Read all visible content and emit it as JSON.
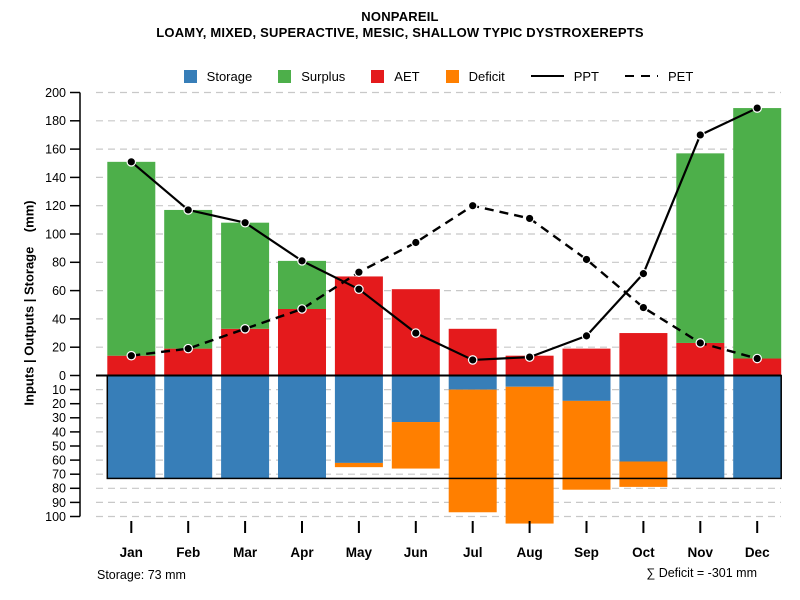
{
  "header": {
    "title": "NONPAREIL",
    "subtitle": "LOAMY, MIXED, SUPERACTIVE, MESIC, SHALLOW TYPIC DYSTROXEREPTS"
  },
  "legend": {
    "items": [
      {
        "label": "Storage",
        "type": "swatch",
        "color": "#377EB8"
      },
      {
        "label": "Surplus",
        "type": "swatch",
        "color": "#4DAF4A"
      },
      {
        "label": "AET",
        "type": "swatch",
        "color": "#E41A1C"
      },
      {
        "label": "Deficit",
        "type": "swatch",
        "color": "#FF7F00"
      },
      {
        "label": "PPT",
        "type": "solid-line",
        "color": "#000000"
      },
      {
        "label": "PET",
        "type": "dashed-line",
        "color": "#000000"
      }
    ]
  },
  "y_axis": {
    "label": "Inputs | Outputs | Storage    (mm)",
    "top_ticks": [
      0,
      20,
      40,
      60,
      80,
      100,
      120,
      140,
      160,
      180,
      200
    ],
    "bottom_ticks": [
      0,
      10,
      20,
      30,
      40,
      50,
      60,
      70,
      80,
      90,
      100
    ]
  },
  "footer": {
    "storage_note": "Storage: 73 mm",
    "deficit_note": "∑ Deficit = -301 mm"
  },
  "chart_data": {
    "type": "bar",
    "subtype": "water-balance bar + line combo",
    "title": "NONPAREIL",
    "subtitle": "LOAMY, MIXED, SUPERACTIVE, MESIC, SHALLOW TYPIC DYSTROXEREPTS",
    "categories": [
      "Jan",
      "Feb",
      "Mar",
      "Apr",
      "May",
      "Jun",
      "Jul",
      "Aug",
      "Sep",
      "Oct",
      "Nov",
      "Dec"
    ],
    "series": [
      {
        "name": "AET",
        "type": "bar",
        "direction": "up",
        "stack": "top",
        "color": "#E41A1C",
        "values": [
          14,
          19,
          33,
          47,
          70,
          61,
          33,
          14,
          19,
          30,
          23,
          12
        ]
      },
      {
        "name": "Surplus",
        "type": "bar",
        "direction": "up",
        "stack": "top",
        "color": "#4DAF4A",
        "values": [
          137,
          98,
          75,
          34,
          0,
          0,
          0,
          0,
          0,
          0,
          134,
          177
        ]
      },
      {
        "name": "Storage",
        "type": "bar",
        "direction": "down",
        "stack": "bottom",
        "color": "#377EB8",
        "values": [
          73,
          73,
          73,
          73,
          62,
          33,
          10,
          8,
          18,
          61,
          73,
          73
        ]
      },
      {
        "name": "Deficit",
        "type": "bar",
        "direction": "down",
        "stack": "bottom",
        "color": "#FF7F00",
        "values": [
          0,
          0,
          0,
          0,
          3,
          33,
          87,
          97,
          63,
          18,
          0,
          0
        ]
      },
      {
        "name": "PPT",
        "type": "line",
        "style": "solid",
        "color": "#000000",
        "values": [
          151,
          117,
          108,
          81,
          61,
          30,
          11,
          13,
          28,
          72,
          170,
          189
        ]
      },
      {
        "name": "PET",
        "type": "line",
        "style": "dashed",
        "color": "#000000",
        "values": [
          14,
          19,
          33,
          47,
          73,
          94,
          120,
          111,
          82,
          48,
          23,
          12
        ]
      }
    ],
    "ylabel": "Inputs | Outputs | Storage (mm)",
    "y_axis_top": {
      "min": 0,
      "max": 200,
      "step": 20,
      "direction": "up"
    },
    "y_axis_bottom": {
      "min": 0,
      "max": 100,
      "step": 10,
      "direction": "down"
    },
    "grid": "dashed horizontal",
    "legend_position": "top center",
    "annotations": {
      "storage_capacity_mm": 73,
      "sum_deficit_mm": -301
    },
    "colors": {
      "grid": "#C8C8C8",
      "axis": "#000000",
      "point_fill": "#000000",
      "point_ring": "#ffffff"
    }
  }
}
